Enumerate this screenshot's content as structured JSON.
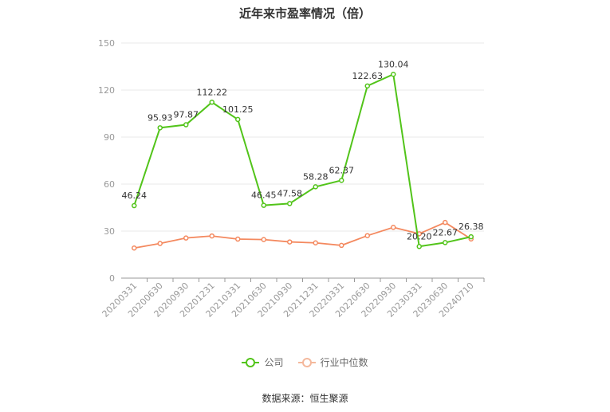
{
  "chart_data": {
    "type": "line",
    "title": "近年来市盈率情况（倍）",
    "categories": [
      "20200331",
      "20200630",
      "20200930",
      "20201231",
      "20210331",
      "20210630",
      "20210930",
      "20211231",
      "20220331",
      "20220630",
      "20220930",
      "20230331",
      "20230630",
      "20240710"
    ],
    "ylim": [
      0,
      150
    ],
    "yticks": [
      0,
      30,
      60,
      90,
      120,
      150
    ],
    "grid": true,
    "legend_position": "bottom",
    "series": [
      {
        "name": "公司",
        "color": "#52c41a",
        "values": [
          46.24,
          95.93,
          97.87,
          112.22,
          101.25,
          46.45,
          47.58,
          58.28,
          62.37,
          122.63,
          130.04,
          20.2,
          22.67,
          26.38
        ],
        "labels": [
          "46.24",
          "95.93",
          "97.87",
          "112.22",
          "101.25",
          "46.45",
          "47.58",
          "58.28",
          "62.37",
          "122.63",
          "130.04",
          "20.20",
          "22.67",
          "26.38"
        ]
      },
      {
        "name": "行业中位数",
        "color": "#f4895f",
        "values": [
          19.2,
          22.1,
          25.6,
          26.9,
          24.9,
          24.6,
          23.1,
          22.5,
          20.9,
          27.1,
          32.4,
          28.3,
          35.5,
          25.0
        ]
      }
    ]
  },
  "source": "数据来源：恒生聚源"
}
